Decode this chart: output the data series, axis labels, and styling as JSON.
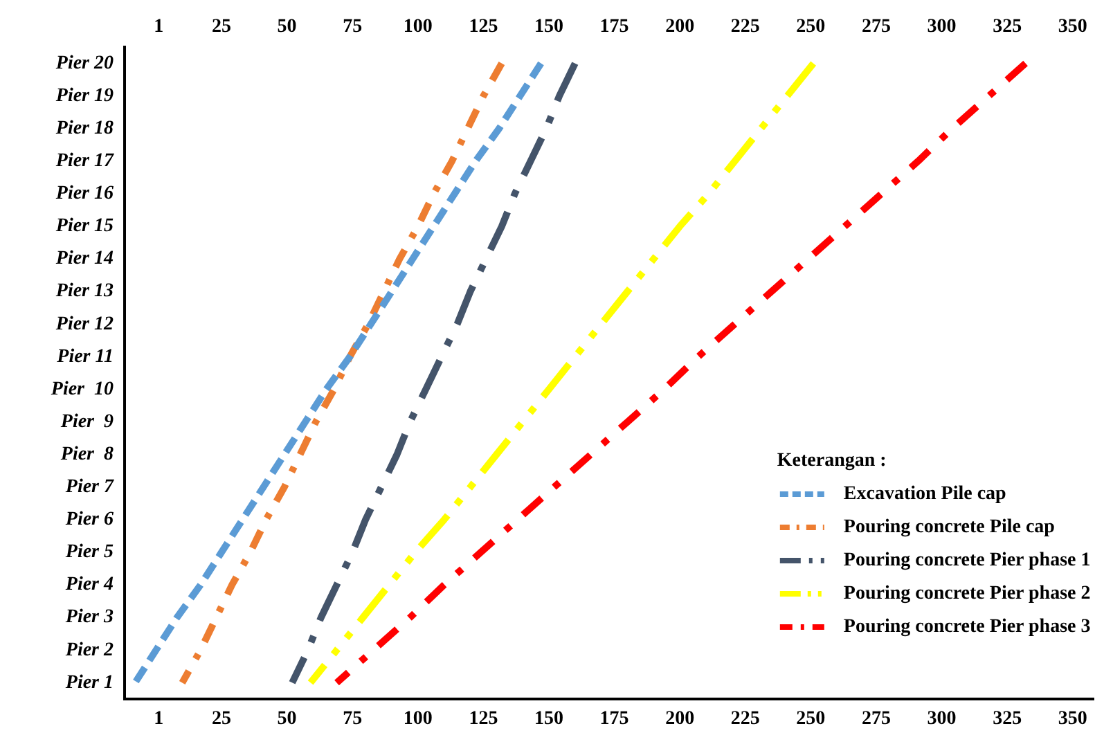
{
  "chart_data": {
    "type": "line",
    "orientation": "horizontal",
    "categories": [
      "Pier 20",
      "Pier 19",
      "Pier 18",
      "Pier 17",
      "Pier 16",
      "Pier 15",
      "Pier 14",
      "Pier 13",
      "Pier 12",
      "Pier 11",
      "Pier  10",
      "Pier  9",
      "Pier  8",
      "Pier 7",
      "Pier 6",
      "Pier 5",
      "Pier 4",
      "Pier 3",
      "Pier 2",
      "Pier 1"
    ],
    "xlim": [
      -12,
      358
    ],
    "xticks": [
      1,
      25,
      50,
      75,
      100,
      125,
      150,
      175,
      200,
      225,
      250,
      275,
      300,
      325,
      350
    ],
    "x2lim": [
      -12,
      358
    ],
    "x2ticks": [
      1,
      25,
      50,
      75,
      100,
      125,
      150,
      175,
      200,
      225,
      250,
      275,
      300,
      325,
      350
    ],
    "legend_title": "Keterangan :",
    "legend": "bottom right",
    "grid": false,
    "line_style": "dashed",
    "series": [
      {
        "name": "Excavation Pile cap",
        "color": "#5b9bd5",
        "values": [
          147,
          139,
          131,
          122,
          114,
          106,
          98,
          90,
          82,
          74,
          65,
          57,
          49,
          41,
          33,
          25,
          17,
          8,
          0,
          -8
        ]
      },
      {
        "name": "Pouring concrete Pile cap",
        "color": "#ed7d31",
        "values": [
          132,
          125,
          119,
          113,
          106,
          100,
          93,
          87,
          81,
          74,
          68,
          61,
          55,
          49,
          42,
          36,
          29,
          23,
          17,
          10
        ]
      },
      {
        "name": "Pouring concrete Pier phase 1",
        "color": "#44546a",
        "values": [
          160,
          154,
          149,
          143,
          137,
          132,
          126,
          120,
          115,
          109,
          103,
          97,
          92,
          86,
          80,
          75,
          69,
          63,
          58,
          52
        ]
      },
      {
        "name": "Pouring concrete Pier phase 2",
        "color": "#ffff00",
        "values": [
          251,
          241,
          231,
          221,
          211,
          200,
          190,
          180,
          170,
          160,
          150,
          140,
          130,
          120,
          110,
          99,
          89,
          79,
          69,
          59
        ]
      },
      {
        "name": "Pouring concrete Pier phase 3",
        "color": "#ff0000",
        "values": [
          332,
          318,
          304,
          291,
          277,
          263,
          249,
          235,
          221,
          207,
          194,
          180,
          166,
          152,
          138,
          124,
          110,
          97,
          83,
          69
        ]
      }
    ]
  }
}
